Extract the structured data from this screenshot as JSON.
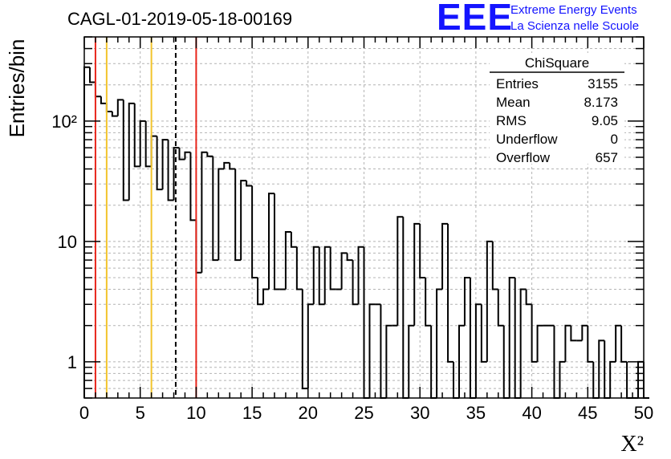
{
  "header": {
    "title": "CAGL-01-2019-05-18-00169",
    "logo_text": "EEE",
    "logo_line1": "Extreme Energy Events",
    "logo_line2": "La Scienza nelle Scuole"
  },
  "stats": {
    "name": "ChiSquare",
    "rows": [
      {
        "label": "Entries",
        "value": "3155"
      },
      {
        "label": "Mean",
        "value": "8.173"
      },
      {
        "label": "RMS",
        "value": "9.05"
      },
      {
        "label": "Underflow",
        "value": "0"
      },
      {
        "label": "Overflow",
        "value": "657"
      }
    ]
  },
  "chart_data": {
    "type": "bar",
    "histogram": true,
    "title": "CAGL-01-2019-05-18-00169",
    "xlabel": "X²",
    "ylabel": "Entries/bin",
    "xlim": [
      0,
      50
    ],
    "ylim": [
      0.5,
      500
    ],
    "yscale": "log",
    "grid": true,
    "bin_width": 0.5,
    "x_ticks": [
      0,
      5,
      10,
      15,
      20,
      25,
      30,
      35,
      40,
      45,
      50
    ],
    "y_ticks": [
      {
        "value": 1,
        "label": "1"
      },
      {
        "value": 10,
        "label": "10"
      },
      {
        "value": 100,
        "label": "10²"
      }
    ],
    "bin_edges_start": 0,
    "values": [
      280,
      210,
      160,
      140,
      120,
      110,
      150,
      22,
      140,
      42,
      100,
      42,
      75,
      27,
      70,
      22,
      60,
      48,
      55,
      15,
      5.5,
      55,
      51,
      7,
      40,
      45,
      40,
      7,
      32,
      29,
      5,
      3,
      4,
      25,
      4,
      4,
      12,
      9,
      4,
      0.6,
      3,
      9,
      3,
      9,
      4,
      4,
      8,
      7,
      3,
      9,
      0.4,
      3,
      3,
      0.4,
      2,
      2,
      16,
      0.4,
      2,
      14,
      5,
      2,
      0.4,
      4,
      14,
      1,
      0.4,
      2,
      5,
      0.4,
      3,
      1,
      10,
      4,
      2,
      0.4,
      5,
      0.4,
      4,
      3,
      1,
      2,
      2,
      2,
      0.4,
      1,
      2,
      1.5,
      1.5,
      2,
      1,
      0.4,
      1.5,
      0.4,
      1,
      2,
      1,
      0.4,
      0.4,
      1,
      0.4
    ],
    "vertical_lines": [
      {
        "x": 1,
        "color": "#e8261c",
        "style": "solid"
      },
      {
        "x": 2,
        "color": "#f2c42c",
        "style": "solid"
      },
      {
        "x": 6,
        "color": "#f2c42c",
        "style": "solid"
      },
      {
        "x": 8.173,
        "color": "#000000",
        "style": "dashed"
      },
      {
        "x": 10,
        "color": "#e8261c",
        "style": "solid"
      }
    ]
  },
  "colors": {
    "accent_red": "#e8261c",
    "accent_yellow": "#f2c42c",
    "logo_blue": "#1414ff",
    "frame": "#000000",
    "grid": "#b4b4b4"
  }
}
